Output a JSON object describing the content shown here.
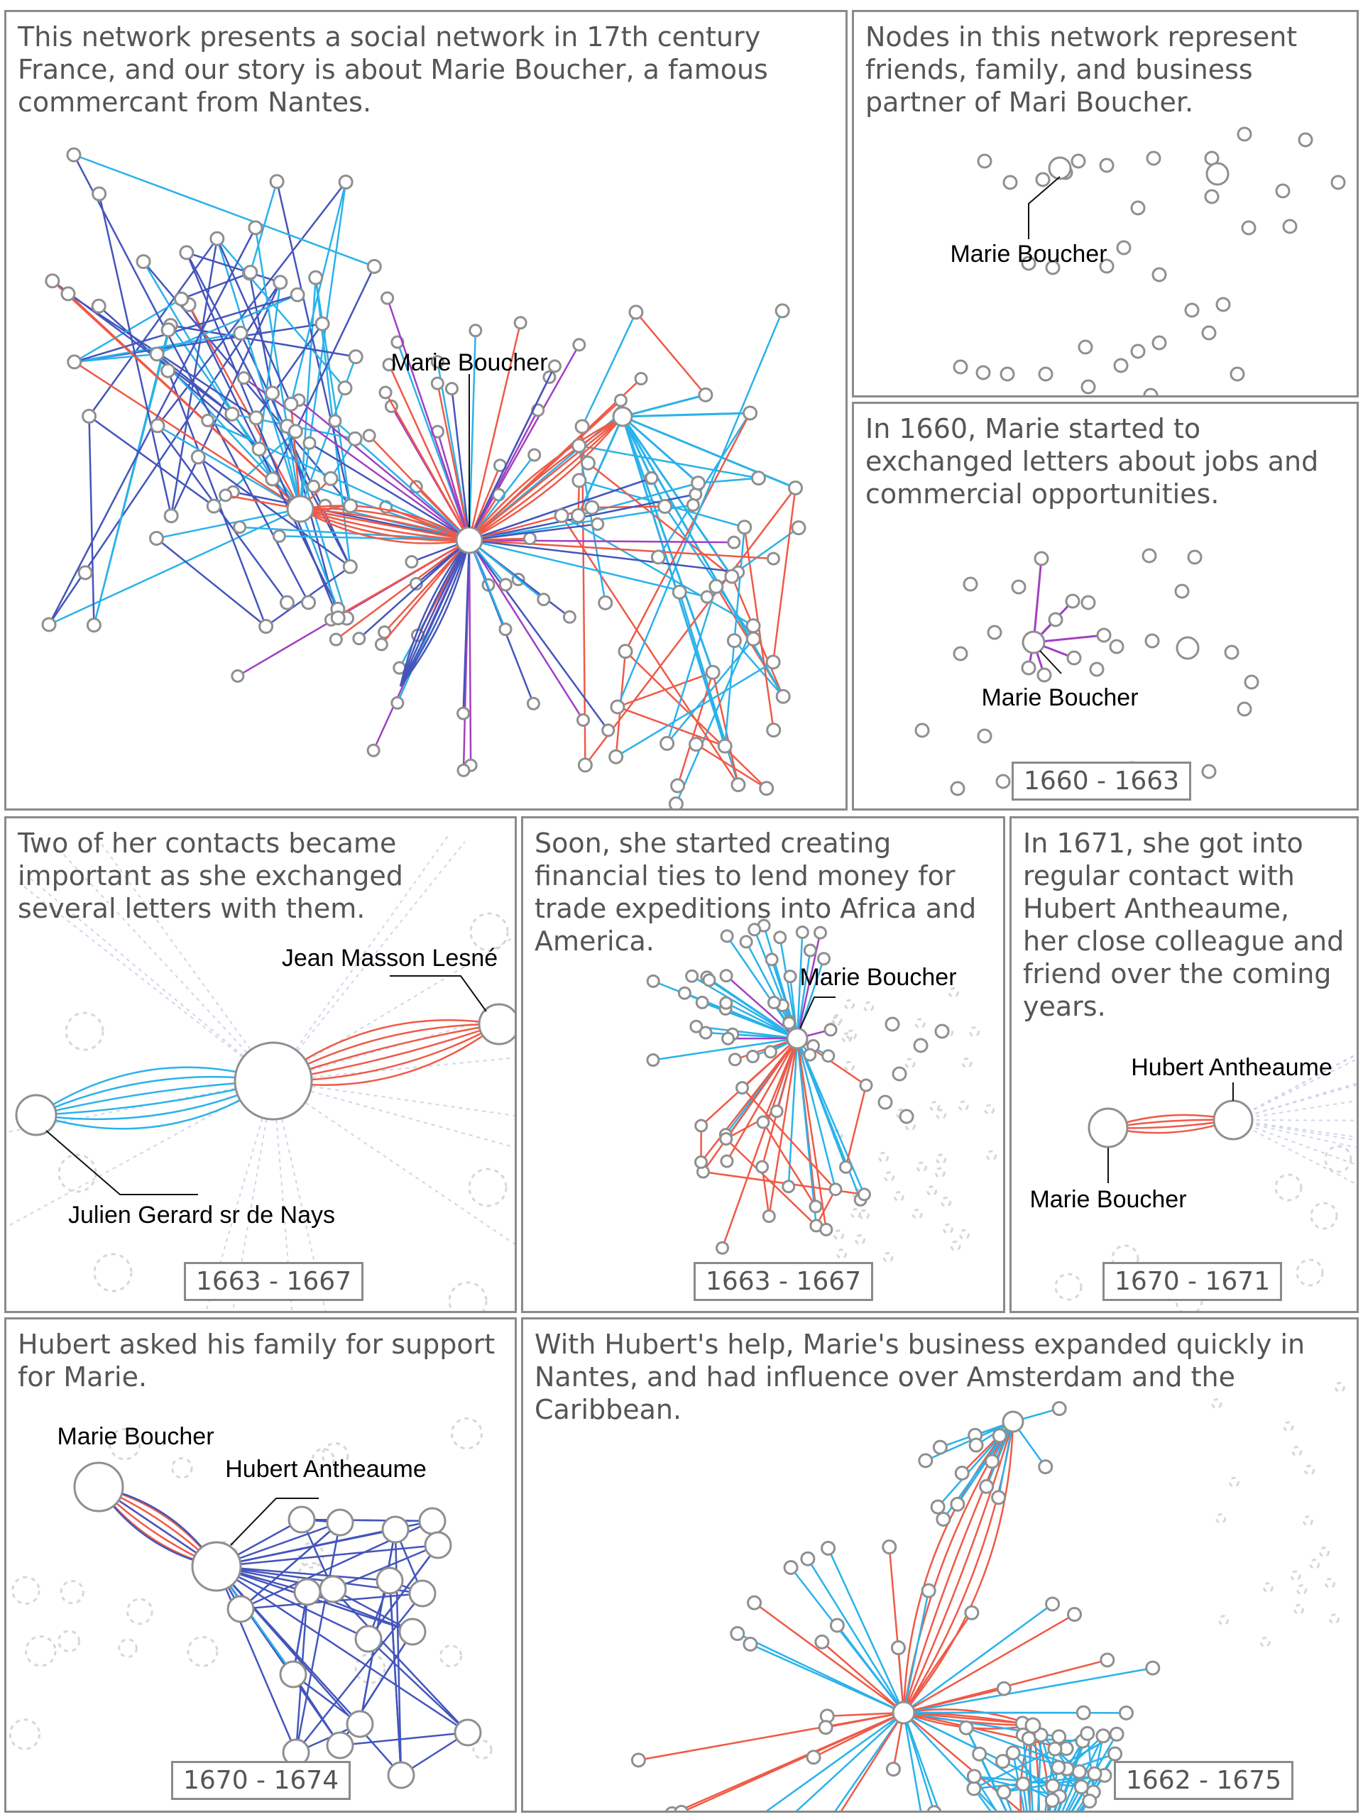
{
  "panels": {
    "p1": {
      "caption": "This network presents a social network in 17th century\nFrance, and our story is about Marie Boucher, a famous\ncommercant from Nantes.",
      "label": "Marie Boucher"
    },
    "p2": {
      "caption": "Nodes in this network represent\nfriends, family, and business\npartner of Mari Boucher.",
      "label": "Marie Boucher"
    },
    "p3": {
      "caption": "In 1660, Marie started to\nexchanged letters about jobs and\ncommercial opportunities.",
      "label": "Marie Boucher",
      "period": "1660 - 1663"
    },
    "p4": {
      "caption": "Two of her contacts became\nimportant as she exchanged\nseveral letters with them.",
      "label_a": "Jean Masson Lesné",
      "label_b": "Julien Gerard sr de Nays",
      "period": "1663 - 1667"
    },
    "p5": {
      "caption": "Soon, she started creating\nfinancial ties to lend money for\ntrade expeditions into Africa and\nAmerica.",
      "label": "Marie Boucher",
      "period": "1663 - 1667"
    },
    "p6": {
      "caption": "In 1671, she got into\nregular contact with\nHubert Antheaume,\nher close colleague and\nfriend over the coming\nyears.",
      "label_a": "Hubert Antheaume",
      "label_b": "Marie Boucher",
      "period": "1670 - 1671"
    },
    "p7": {
      "caption": "Hubert asked his family for support\nfor Marie.",
      "label_a": "Marie Boucher",
      "label_b": "Hubert Antheaume",
      "period": "1670 - 1674"
    },
    "p8": {
      "caption": "With Hubert's help, Marie's business expanded quickly in\nNantes, and had influence over Amsterdam and the\nCaribbean.",
      "period": "1662 - 1675"
    }
  },
  "colors": {
    "letters": "#2ab2ea",
    "financial": "#ef5a47",
    "family": "#4455bb",
    "other": "#a23fc2",
    "node_stroke": "#8f8f8f",
    "border": "#8a8a8a",
    "caption_text": "#555555"
  }
}
